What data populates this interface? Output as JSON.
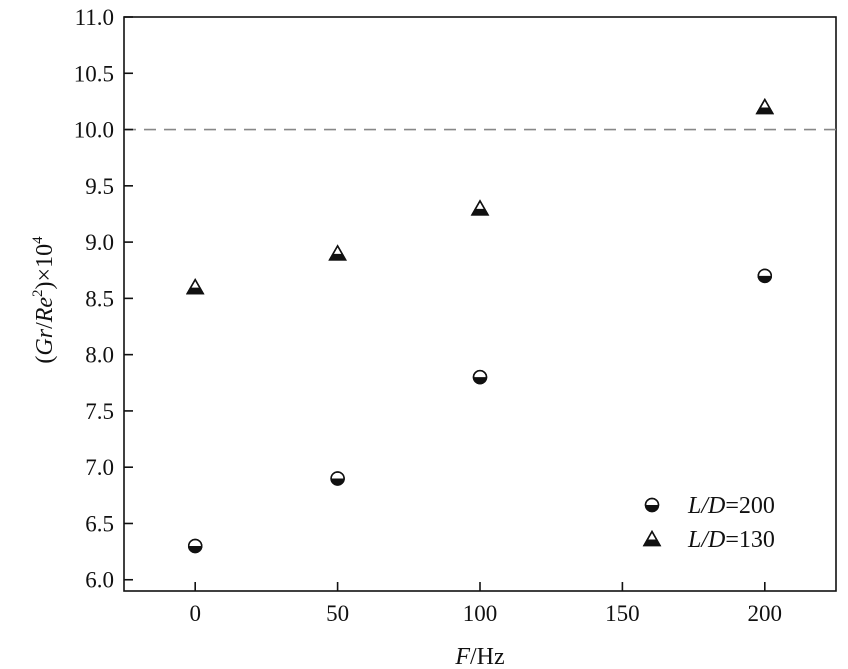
{
  "chart_data": {
    "type": "scatter",
    "xlabel_var": "F",
    "xlabel_unit": "/Hz",
    "ylabel": "(Gr/Re²)×10⁴",
    "xlim": [
      -25,
      225
    ],
    "ylim": [
      5.9,
      11.0
    ],
    "x_ticks": [
      0,
      50,
      100,
      150,
      200
    ],
    "y_ticks": [
      6.0,
      6.5,
      7.0,
      7.5,
      8.0,
      8.5,
      9.0,
      9.5,
      10.0,
      10.5,
      11.0
    ],
    "x_tick_labels": [
      "0",
      "50",
      "100",
      "150",
      "200"
    ],
    "y_tick_labels": [
      "6.0",
      "6.5",
      "7.0",
      "7.5",
      "8.0",
      "8.5",
      "9.0",
      "9.5",
      "10.0",
      "10.5",
      "11.0"
    ],
    "reference_line": {
      "y": 10.0,
      "style": "dashed",
      "color": "#888888"
    },
    "series": [
      {
        "name": "L/D=200",
        "name_italic": "L/D",
        "name_rest": "=200",
        "marker": "half-filled-circle",
        "x": [
          0,
          50,
          100,
          200
        ],
        "y": [
          6.3,
          6.9,
          7.8,
          8.7
        ]
      },
      {
        "name": "L/D=130",
        "name_italic": "L/D",
        "name_rest": "=130",
        "marker": "half-filled-triangle",
        "x": [
          0,
          50,
          100,
          200
        ],
        "y": [
          8.6,
          8.9,
          9.3,
          10.2
        ]
      }
    ],
    "legend_position": "bottom-right",
    "grid": false
  }
}
